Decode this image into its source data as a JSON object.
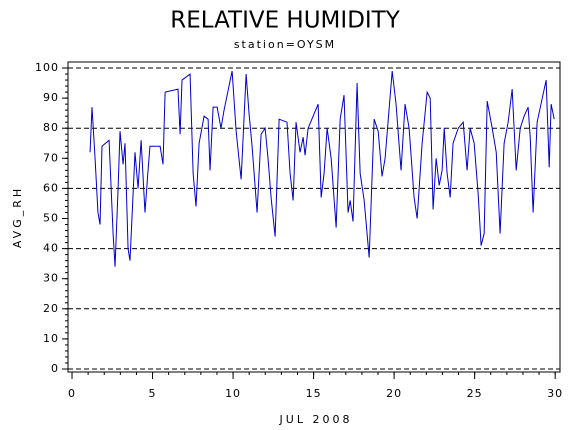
{
  "chart_data": {
    "type": "line",
    "title": "RELATIVE HUMIDITY",
    "subtitle": "station=OYSM",
    "x_label": "JUL 2008",
    "y_label": "AVG_RH",
    "xlim": [
      -0.25,
      30.3
    ],
    "ylim": [
      -1,
      102
    ],
    "xticks": [
      0,
      5,
      10,
      15,
      20,
      25,
      30
    ],
    "yticks": [
      0,
      10,
      20,
      30,
      40,
      50,
      60,
      70,
      80,
      90,
      100
    ],
    "xminorticks": [
      0,
      1,
      2,
      3,
      4,
      5,
      6,
      7,
      8,
      9,
      10,
      11,
      12,
      13,
      14,
      15,
      16,
      17,
      18,
      19,
      20,
      21,
      22,
      23,
      24,
      25,
      26,
      27,
      28,
      29,
      30
    ],
    "yminorticks": [
      0,
      2,
      4,
      6,
      8,
      10,
      12,
      14,
      16,
      18,
      20,
      22,
      24,
      26,
      28,
      30,
      32,
      34,
      36,
      38,
      40,
      42,
      44,
      46,
      48,
      50,
      52,
      54,
      56,
      58,
      60,
      62,
      64,
      66,
      68,
      70,
      72,
      74,
      76,
      78,
      80,
      82,
      84,
      86,
      88,
      90,
      92,
      94,
      96,
      98,
      100
    ],
    "ygrid": [
      0,
      20,
      40,
      60,
      80,
      100
    ],
    "x": [
      1.12,
      1.24,
      1.43,
      1.61,
      1.74,
      1.86,
      2.3,
      2.55,
      2.67,
      2.86,
      2.98,
      3.17,
      3.29,
      3.48,
      3.6,
      3.79,
      3.91,
      4.1,
      4.29,
      4.53,
      4.72,
      4.84,
      5.47,
      5.65,
      5.78,
      6.58,
      6.71,
      6.83,
      7.33,
      7.52,
      7.7,
      7.89,
      8.2,
      8.45,
      8.57,
      8.76,
      9.01,
      9.25,
      9.44,
      9.94,
      10.19,
      10.5,
      10.81,
      10.99,
      11.18,
      11.49,
      11.74,
      11.99,
      12.17,
      12.36,
      12.61,
      12.86,
      13.35,
      13.54,
      13.73,
      13.91,
      14.16,
      14.35,
      14.47,
      14.66,
      15.28,
      15.47,
      15.65,
      15.84,
      16.09,
      16.4,
      16.65,
      16.89,
      17.14,
      17.27,
      17.45,
      17.7,
      17.89,
      18.14,
      18.45,
      18.76,
      19.01,
      19.25,
      19.44,
      19.88,
      20.12,
      20.43,
      20.68,
      20.93,
      21.24,
      21.43,
      21.74,
      22.05,
      22.24,
      22.42,
      22.61,
      22.8,
      22.98,
      23.11,
      23.29,
      23.48,
      23.66,
      23.98,
      24.29,
      24.53,
      24.72,
      24.97,
      25.22,
      25.4,
      25.59,
      25.78,
      26.09,
      26.34,
      26.58,
      26.83,
      27.08,
      27.33,
      27.58,
      27.83,
      28.07,
      28.32,
      28.45,
      28.63,
      28.88,
      29.44,
      29.63,
      29.75,
      29.94
    ],
    "series": [
      {
        "name": "AVG_RH",
        "color": "#0000cc",
        "values": [
          72,
          87,
          70,
          52,
          48,
          74,
          76,
          45,
          34,
          60,
          79,
          68,
          75,
          40,
          36,
          58,
          72,
          60,
          76,
          52,
          66,
          74,
          74,
          68,
          92,
          93,
          78,
          96,
          98,
          65,
          54,
          75,
          84,
          83,
          66,
          87,
          87,
          80,
          86,
          99,
          79,
          63,
          98,
          85,
          74,
          52,
          78,
          80,
          70,
          57,
          44,
          83,
          82,
          65,
          56,
          82,
          72,
          77,
          71,
          80,
          88,
          57,
          65,
          80,
          70,
          47,
          83,
          91,
          52,
          56,
          49,
          95,
          65,
          56,
          37,
          83,
          79,
          64,
          70,
          99,
          88,
          66,
          88,
          80,
          57,
          50,
          75,
          92,
          90,
          53,
          70,
          61,
          66,
          80,
          65,
          57,
          75,
          80,
          82,
          66,
          80,
          75,
          58,
          41,
          45,
          89,
          80,
          72,
          45,
          75,
          82,
          93,
          66,
          80,
          84,
          87,
          77,
          52,
          82,
          96,
          67,
          88,
          83
        ]
      }
    ]
  }
}
